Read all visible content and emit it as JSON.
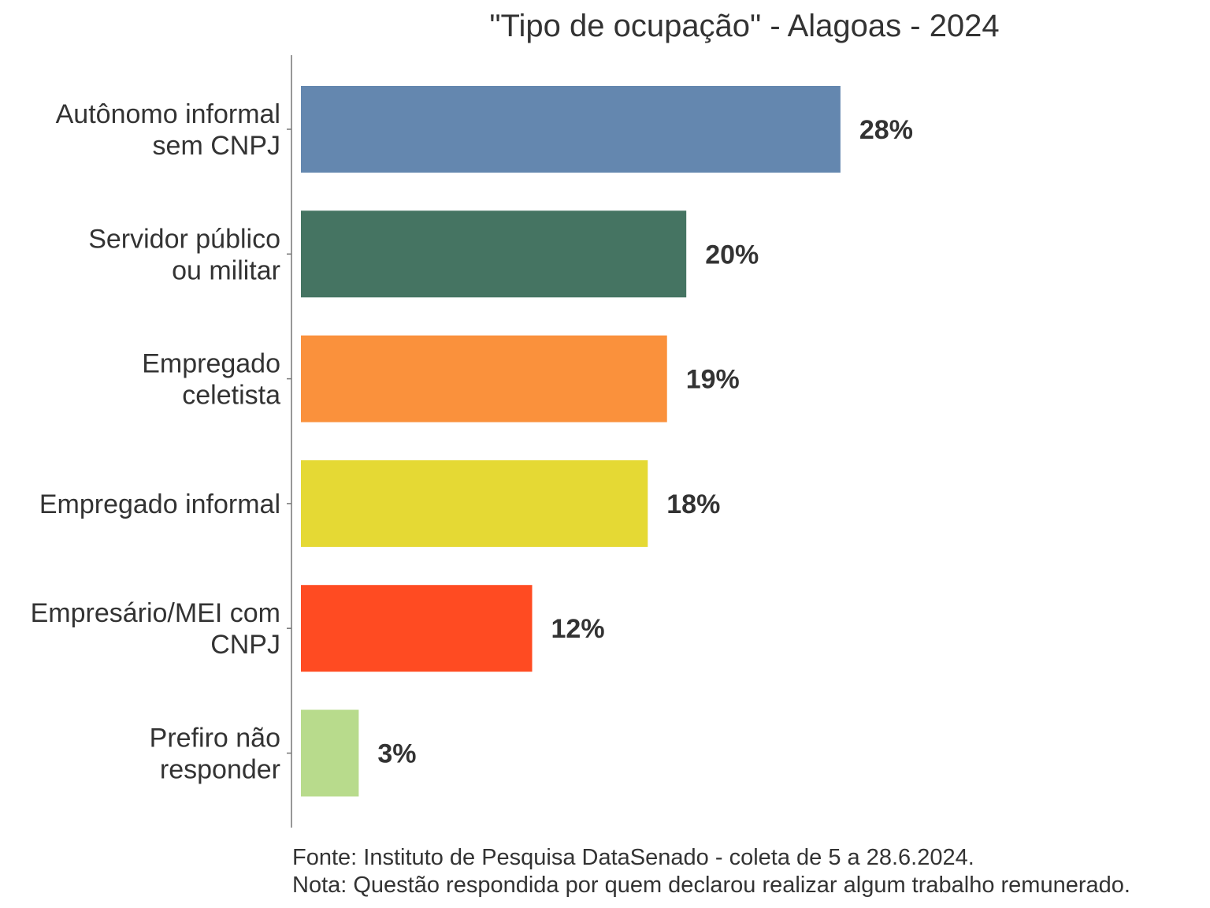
{
  "chart_data": {
    "type": "bar",
    "orientation": "horizontal",
    "title": "\"Tipo de ocupação\" - Alagoas - 2024",
    "categories": [
      [
        "Autônomo informal",
        "sem CNPJ"
      ],
      [
        "Servidor público",
        "ou militar"
      ],
      [
        "Empregado",
        "celetista"
      ],
      [
        "Empregado informal"
      ],
      [
        "Empresário/MEI com",
        "CNPJ"
      ],
      [
        "Prefiro não",
        "responder"
      ]
    ],
    "values": [
      28,
      20,
      19,
      18,
      12,
      3
    ],
    "value_labels": [
      "28%",
      "20%",
      "19%",
      "18%",
      "12%",
      "3%"
    ],
    "colors": [
      "#6487AF",
      "#457462",
      "#FA913C",
      "#E5D934",
      "#FF4B22",
      "#B8DB8C"
    ],
    "xlabel": "",
    "ylabel": "",
    "xlim": [
      0,
      30
    ],
    "grid": false,
    "legend": "none"
  },
  "notes": {
    "source": "Fonte: Instituto de Pesquisa DataSenado - coleta de 5 a 28.6.2024.",
    "note": "Nota: Questão respondida por quem declarou realizar algum trabalho remunerado."
  }
}
